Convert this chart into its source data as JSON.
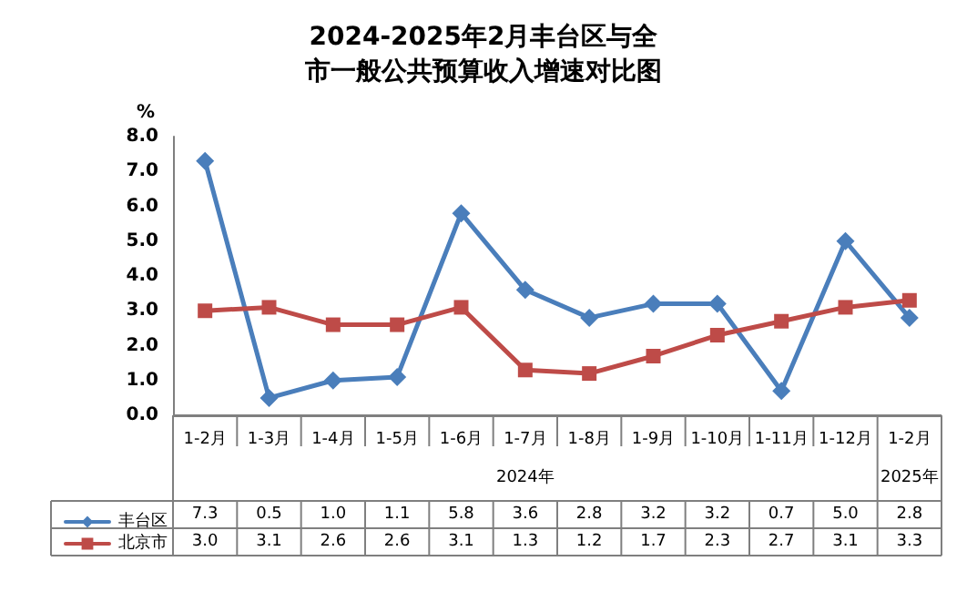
{
  "chart_data": {
    "type": "line",
    "title": "2024-2025年2月丰台区与全市一般公共预算收入增速对比图",
    "ylabel": "%",
    "categories": [
      "1-2月",
      "1-3月",
      "1-4月",
      "1-5月",
      "1-6月",
      "1-7月",
      "1-8月",
      "1-9月",
      "1-10月",
      "1-11月",
      "1-12月",
      "1-2月"
    ],
    "series": [
      {
        "name": "丰台区",
        "color": "#4a7ebb",
        "marker": "diamond",
        "values": [
          7.3,
          0.5,
          1.0,
          1.1,
          5.8,
          3.6,
          2.8,
          3.2,
          3.2,
          0.7,
          5.0,
          2.8
        ],
        "value_labels": [
          "7.3",
          "0.5",
          "1.0",
          "1.1",
          "5.8",
          "3.6",
          "2.8",
          "3.2",
          "3.2",
          "0.7",
          "5.0",
          "2.8"
        ]
      },
      {
        "name": "北京市",
        "color": "#be4b48",
        "marker": "square",
        "values": [
          3.0,
          3.1,
          2.6,
          2.6,
          3.1,
          1.3,
          1.2,
          1.7,
          2.3,
          2.7,
          3.1,
          3.3
        ],
        "value_labels": [
          "3.0",
          "3.1",
          "2.6",
          "2.6",
          "3.1",
          "1.3",
          "1.2",
          "1.7",
          "2.3",
          "2.7",
          "3.1",
          "3.3"
        ]
      }
    ],
    "annotations": [
      "2024年",
      "2025年"
    ],
    "ylim": [
      0,
      8
    ],
    "yticks": [
      {
        "value": 0,
        "label": "0.0"
      },
      {
        "value": 1,
        "label": "1.0"
      },
      {
        "value": 2,
        "label": "2.0"
      },
      {
        "value": 3,
        "label": "3.0"
      },
      {
        "value": 4,
        "label": "4.0"
      },
      {
        "value": 5,
        "label": "5.0"
      },
      {
        "value": 6,
        "label": "6.0"
      },
      {
        "value": 7,
        "label": "7.0"
      },
      {
        "value": 8,
        "label": "8.0"
      }
    ],
    "grid": false,
    "legend": "bottom left"
  }
}
